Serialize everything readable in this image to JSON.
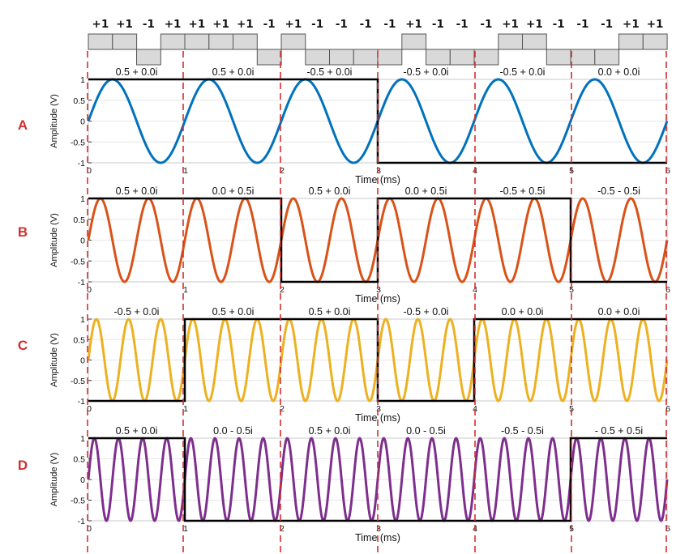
{
  "bits": [
    "+1",
    "+1",
    "-1",
    "+1",
    "+1",
    "+1",
    "+1",
    "-1",
    "+1",
    "-1",
    "-1",
    "-1",
    "-1",
    "+1",
    "-1",
    "-1",
    "-1",
    "+1",
    "+1",
    "-1",
    "-1",
    "-1",
    "+1",
    "+1"
  ],
  "row_labels": [
    "A",
    "B",
    "C",
    "D"
  ],
  "colors": {
    "marker": "#d32f2f",
    "square": "#000000",
    "bit_fill": "#d9d9d9",
    "bit_stroke": "#555555",
    "grid": "#e6e6e6"
  },
  "chart_data": [
    {
      "type": "line",
      "row": "A",
      "color": "#0072bd",
      "cycles_per_ms": 1,
      "segment_labels": [
        "0.5 + 0.0i",
        "0.5 + 0.0i",
        "-0.5 + 0.0i",
        "-0.5 + 0.0i",
        "-0.5 + 0.0i",
        "0.0 + 0.0i"
      ],
      "square_levels": [
        1,
        1,
        1,
        -1,
        -1,
        -1
      ],
      "xlabel": "Time (ms)",
      "ylabel": "Amplitude (V)",
      "xlim": [
        0,
        6
      ],
      "ylim": [
        -1,
        1
      ],
      "xticks": [
        "0",
        "1",
        "2",
        "3",
        "4",
        "5",
        "6"
      ],
      "yticks": [
        "1",
        "0.5",
        "0",
        "-0.5",
        "-1"
      ]
    },
    {
      "type": "line",
      "row": "B",
      "color": "#d95319",
      "cycles_per_ms": 2,
      "segment_labels": [
        "0.5 + 0.0i",
        "0.0 + 0.5i",
        "0.5 + 0.0i",
        "0.0 + 0.5i",
        "-0.5 + 0.5i",
        "-0.5 - 0.5i"
      ],
      "square_levels": [
        1,
        1,
        -1,
        1,
        1,
        -1
      ],
      "xlabel": "Time (ms)",
      "ylabel": "Amplitude (V)",
      "xlim": [
        0,
        6
      ],
      "ylim": [
        -1,
        1
      ],
      "xticks": [
        "0",
        "1",
        "2",
        "3",
        "4",
        "5",
        "6"
      ],
      "yticks": [
        "1",
        "0.5",
        "0",
        "-0.5",
        "-1"
      ]
    },
    {
      "type": "line",
      "row": "C",
      "color": "#edb120",
      "cycles_per_ms": 3,
      "segment_labels": [
        "-0.5 + 0.0i",
        "0.5 + 0.0i",
        "0.5 + 0.0i",
        "-0.5 + 0.0i",
        "0.0 + 0.0i",
        "0.0 + 0.0i"
      ],
      "square_levels": [
        -1,
        1,
        1,
        -1,
        1,
        1
      ],
      "xlabel": "Time (ms)",
      "ylabel": "Amplitude (V)",
      "xlim": [
        0,
        6
      ],
      "ylim": [
        -1,
        1
      ],
      "xticks": [
        "0",
        "1",
        "2",
        "3",
        "4",
        "5",
        "6"
      ],
      "yticks": [
        "1",
        "0.5",
        "0",
        "-0.5",
        "-1"
      ]
    },
    {
      "type": "line",
      "row": "D",
      "color": "#7e2f8e",
      "cycles_per_ms": 4,
      "segment_labels": [
        "0.5 + 0.0i",
        "0.0 - 0.5i",
        "0.5 + 0.0i",
        "0.0 - 0.5i",
        "-0.5 - 0.5i",
        "- 0.5 + 0.5i"
      ],
      "square_levels": [
        1,
        -1,
        -1,
        -1,
        -1,
        1
      ],
      "xlabel": "Time (ms)",
      "ylabel": "Amplitude (V)",
      "xlim": [
        0,
        6
      ],
      "ylim": [
        -1,
        1
      ],
      "xticks": [
        "0",
        "1",
        "2",
        "3",
        "4",
        "5",
        "6"
      ],
      "yticks": [
        "1",
        "0.5",
        "0",
        "-0.5",
        "-1"
      ]
    }
  ]
}
